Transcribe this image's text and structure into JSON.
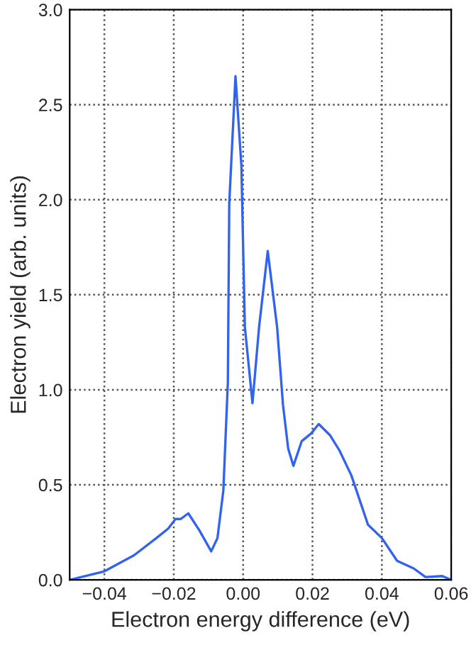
{
  "chart_data": {
    "type": "line",
    "xlabel": "Electron energy difference (eV)",
    "ylabel": "Electron yield (arb. units)",
    "x": [
      -0.05,
      -0.04,
      -0.0314,
      -0.025,
      -0.0216,
      -0.0195,
      -0.018,
      -0.0158,
      -0.0126,
      -0.0092,
      -0.0074,
      -0.0057,
      -0.0044,
      -0.004,
      -0.0022,
      -0.0005,
      0.0005,
      0.0027,
      0.0046,
      0.0071,
      0.0098,
      0.0115,
      0.013,
      0.0145,
      0.0169,
      0.0196,
      0.0218,
      0.0251,
      0.0278,
      0.0312,
      0.036,
      0.04,
      0.0444,
      0.0492,
      0.0526,
      0.0574,
      0.06
    ],
    "series": [
      {
        "color": "#3162f0",
        "values": [
          0.0,
          0.045,
          0.13,
          0.22,
          0.27,
          0.32,
          0.32,
          0.35,
          0.26,
          0.15,
          0.22,
          0.47,
          1.04,
          1.98,
          2.65,
          2.18,
          1.33,
          0.93,
          1.33,
          1.73,
          1.33,
          0.92,
          0.69,
          0.6,
          0.73,
          0.77,
          0.82,
          0.76,
          0.68,
          0.55,
          0.29,
          0.22,
          0.1,
          0.06,
          0.015,
          0.02,
          0.0
        ]
      }
    ],
    "xlim": [
      -0.05,
      0.06
    ],
    "xticks": [
      {
        "value": -0.04,
        "label": "−0.04"
      },
      {
        "value": -0.02,
        "label": "−0.02"
      },
      {
        "value": 0,
        "label": "0.00"
      },
      {
        "value": 0.02,
        "label": "0.02"
      },
      {
        "value": 0.04,
        "label": "0.04"
      },
      {
        "value": 0.06,
        "label": "0.06"
      }
    ],
    "ylim": [
      0,
      3.0
    ],
    "yticks": [
      {
        "value": 0,
        "label": "0.0"
      },
      {
        "value": 0.5,
        "label": "0.5"
      },
      {
        "value": 1.0,
        "label": "1.0"
      },
      {
        "value": 1.5,
        "label": "1.5"
      },
      {
        "value": 2.0,
        "label": "2.0"
      },
      {
        "value": 2.5,
        "label": "2.5"
      },
      {
        "value": 3.0,
        "label": "3.0"
      }
    ],
    "grid": true,
    "line_style": "solid"
  }
}
